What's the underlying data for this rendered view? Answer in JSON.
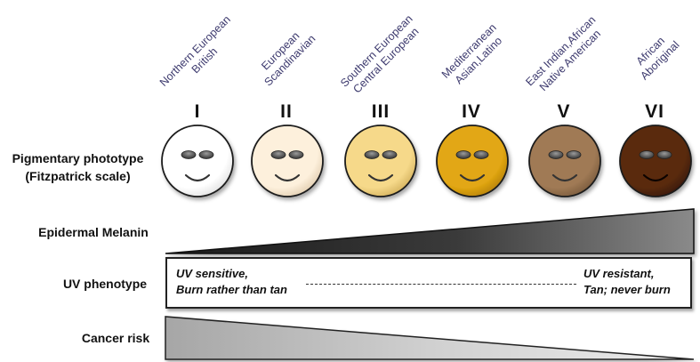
{
  "populations": [
    {
      "line1": "Northern European",
      "line2": "British"
    },
    {
      "line1": "European",
      "line2": "Scandinavian"
    },
    {
      "line1": "Southern European",
      "line2": "Central European"
    },
    {
      "line1": "Mediterranean",
      "line2": "Asian,Latino"
    },
    {
      "line1": "East Indian,African",
      "line2": "Native American"
    },
    {
      "line1": "African",
      "line2": "Aboriginal"
    }
  ],
  "phototypes": [
    {
      "numeral": "I",
      "color": "#ffffff",
      "shade": "#d8d8d8"
    },
    {
      "numeral": "II",
      "color": "#fdf0dc",
      "shade": "#d9c3a3"
    },
    {
      "numeral": "III",
      "color": "#f6d98a",
      "shade": "#c9a54f"
    },
    {
      "numeral": "IV",
      "color": "#e2a712",
      "shade": "#a8760a"
    },
    {
      "numeral": "V",
      "color": "#a07a55",
      "shade": "#6f5236"
    },
    {
      "numeral": "VI",
      "color": "#5a2b0c",
      "shade": "#301405"
    }
  ],
  "labels": {
    "phototype_line1": "Pigmentary phototype",
    "phototype_line2": "(Fitzpatrick scale)",
    "melanin": "Epidermal Melanin",
    "uv_phenotype": "UV phenotype",
    "cancer_risk": "Cancer risk"
  },
  "uv": {
    "left_line1": "UV sensitive,",
    "left_line2": "Burn rather than tan",
    "right_line1": "UV resistant,",
    "right_line2": "Tan; never burn"
  }
}
